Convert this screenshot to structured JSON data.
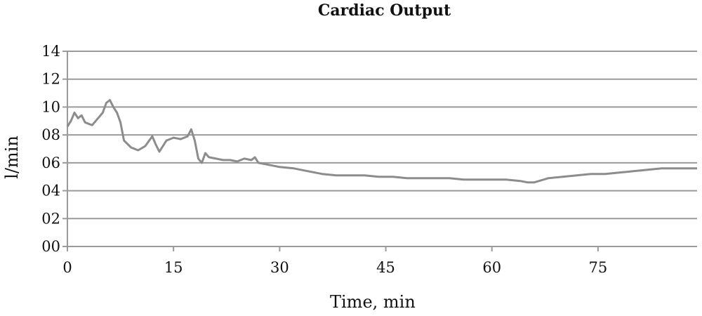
{
  "chart_data": {
    "type": "line",
    "title": "Cardiac Output",
    "xlabel": "Time, min",
    "ylabel": "l/min",
    "xlim": [
      0,
      89
    ],
    "ylim": [
      0,
      14
    ],
    "x_ticks": [
      0,
      15,
      30,
      45,
      60,
      75
    ],
    "x_tick_labels": [
      "0",
      "15",
      "30",
      "45",
      "60",
      "75"
    ],
    "y_ticks": [
      0,
      2,
      4,
      6,
      8,
      10,
      12,
      14
    ],
    "y_tick_labels": [
      "00",
      "02",
      "04",
      "06",
      "08",
      "10",
      "12",
      "14"
    ],
    "grid": "horizontal",
    "legend": "none",
    "series": [
      {
        "color": "#8c8c8c",
        "x": [
          0,
          0.5,
          1,
          1.5,
          2,
          2.5,
          3,
          3.5,
          4,
          4.5,
          5,
          5.5,
          6,
          6.5,
          7,
          7.5,
          8,
          9,
          10,
          11,
          12,
          12.5,
          13,
          14,
          15,
          16,
          17,
          17.5,
          18,
          18.5,
          19,
          19.5,
          20,
          21,
          22,
          23,
          24,
          25,
          26,
          26.5,
          27,
          28,
          29,
          30,
          32,
          34,
          36,
          38,
          40,
          42,
          44,
          46,
          48,
          50,
          52,
          54,
          56,
          58,
          60,
          62,
          64,
          65,
          66,
          68,
          70,
          72,
          74,
          76,
          78,
          80,
          82,
          84,
          86,
          88,
          89
        ],
        "values": [
          8.6,
          9.0,
          9.6,
          9.2,
          9.4,
          8.9,
          8.8,
          8.7,
          9.0,
          9.3,
          9.6,
          10.3,
          10.5,
          10.0,
          9.6,
          8.9,
          7.6,
          7.1,
          6.9,
          7.2,
          7.9,
          7.3,
          6.8,
          7.6,
          7.8,
          7.7,
          7.9,
          8.4,
          7.6,
          6.3,
          6.0,
          6.7,
          6.4,
          6.3,
          6.2,
          6.2,
          6.1,
          6.3,
          6.2,
          6.4,
          6.0,
          5.9,
          5.8,
          5.7,
          5.6,
          5.4,
          5.2,
          5.1,
          5.1,
          5.1,
          5.0,
          5.0,
          4.9,
          4.9,
          4.9,
          4.9,
          4.8,
          4.8,
          4.8,
          4.8,
          4.7,
          4.6,
          4.6,
          4.9,
          5.0,
          5.1,
          5.2,
          5.2,
          5.3,
          5.4,
          5.5,
          5.6,
          5.6,
          5.6,
          5.6
        ]
      }
    ]
  }
}
